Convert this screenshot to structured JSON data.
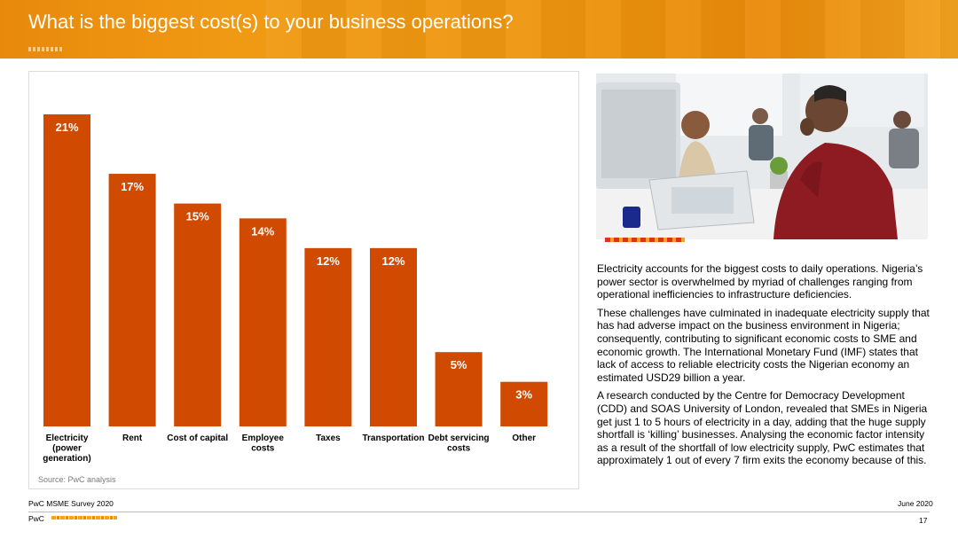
{
  "header": {
    "title": "What is the biggest cost(s) to your business operations?"
  },
  "colors": {
    "bar": "#d04a02",
    "header_orange": "#eb8c00",
    "label_white": "#ffffff"
  },
  "chart_data": {
    "type": "bar",
    "categories": [
      "Electricity (power generation)",
      "Rent",
      "Cost of capital",
      "Employee costs",
      "Taxes",
      "Transportation",
      "Debt servicing costs",
      "Other"
    ],
    "category_lines": [
      [
        "Electricity",
        "(power",
        "generation)"
      ],
      [
        "Rent"
      ],
      [
        "Cost of capital"
      ],
      [
        "Employee",
        "costs"
      ],
      [
        "Taxes"
      ],
      [
        "Transportation"
      ],
      [
        "Debt servicing",
        "costs"
      ],
      [
        "Other"
      ]
    ],
    "values": [
      21,
      17,
      15,
      14,
      12,
      12,
      5,
      3
    ],
    "data_labels": [
      "21%",
      "17%",
      "15%",
      "14%",
      "12%",
      "12%",
      "5%",
      "3%"
    ],
    "unit": "%",
    "ylim": [
      0,
      21
    ],
    "grid": false,
    "legend": "none",
    "title": "",
    "xlabel": "",
    "ylabel": ""
  },
  "source": "Source: PwC analysis",
  "photo": {
    "subject": "man-at-laptop-in-office"
  },
  "body_text": {
    "p1": "Electricity accounts for the biggest costs to daily operations. Nigeria’s power sector is overwhelmed by myriad of challenges ranging from operational inefficiencies to infrastructure deficiencies.",
    "p2": "These challenges have culminated in inadequate electricity supply that has had adverse impact on the business environment in Nigeria; consequently, contributing to significant economic costs to SME and economic growth. The International Monetary Fund (IMF) states that lack of access to reliable electricity costs the Nigerian economy an estimated USD29 billion a year.",
    "p3": "A research conducted by the Centre for Democracy Development (CDD) and SOAS University of London, revealed that SMEs in Nigeria get just 1 to 5 hours of electricity in a day, adding that the huge supply shortfall is ‘killing’ businesses. Analysing the economic factor intensity as a result of the shortfall of low electricity supply, PwC estimates that approximately 1 out of every 7 firm exits the economy because of this."
  },
  "footer": {
    "survey": "PwC MSME Survey 2020",
    "date": "June 2020",
    "brand": "PwC",
    "page": "17"
  }
}
